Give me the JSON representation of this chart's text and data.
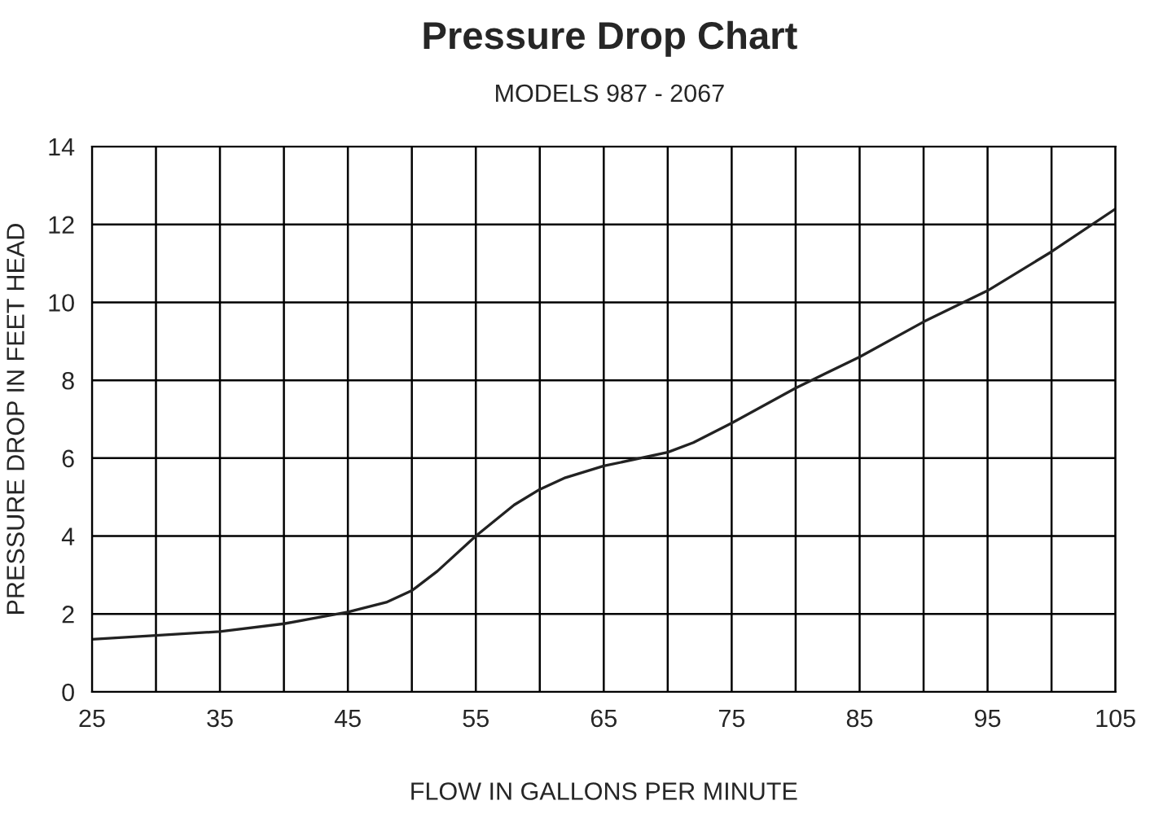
{
  "chart_data": {
    "type": "line",
    "title": "Pressure Drop Chart",
    "subtitle": "MODELS 987 - 2067",
    "xlabel": "FLOW IN GALLONS PER MINUTE",
    "ylabel": "PRESSURE DROP IN FEET HEAD",
    "x": [
      25,
      30,
      35,
      40,
      45,
      48,
      50,
      52,
      55,
      58,
      60,
      62,
      65,
      70,
      72,
      75,
      80,
      85,
      90,
      95,
      100,
      105
    ],
    "series": [
      {
        "color": "#222222",
        "values": [
          1.35,
          1.45,
          1.55,
          1.75,
          2.05,
          2.3,
          2.6,
          3.1,
          4.0,
          4.8,
          5.2,
          5.5,
          5.8,
          6.15,
          6.4,
          6.9,
          7.8,
          8.6,
          9.5,
          10.3,
          11.3,
          12.4
        ]
      }
    ],
    "xlim": [
      25,
      105
    ],
    "ylim": [
      0,
      14
    ],
    "xticks": [
      25,
      {
        "value": 30,
        "label": null
      },
      35,
      {
        "value": 40,
        "label": null
      },
      45,
      {
        "value": 50,
        "label": null
      },
      55,
      {
        "value": 60,
        "label": null
      },
      65,
      {
        "value": 70,
        "label": null
      },
      75,
      {
        "value": 80,
        "label": null
      },
      85,
      {
        "value": 90,
        "label": null
      },
      95,
      {
        "value": 100,
        "label": null
      },
      105
    ],
    "yticks": [
      0,
      2,
      4,
      6,
      8,
      10,
      12,
      14
    ],
    "grid": true,
    "line_style": "solid",
    "marker": "none"
  }
}
